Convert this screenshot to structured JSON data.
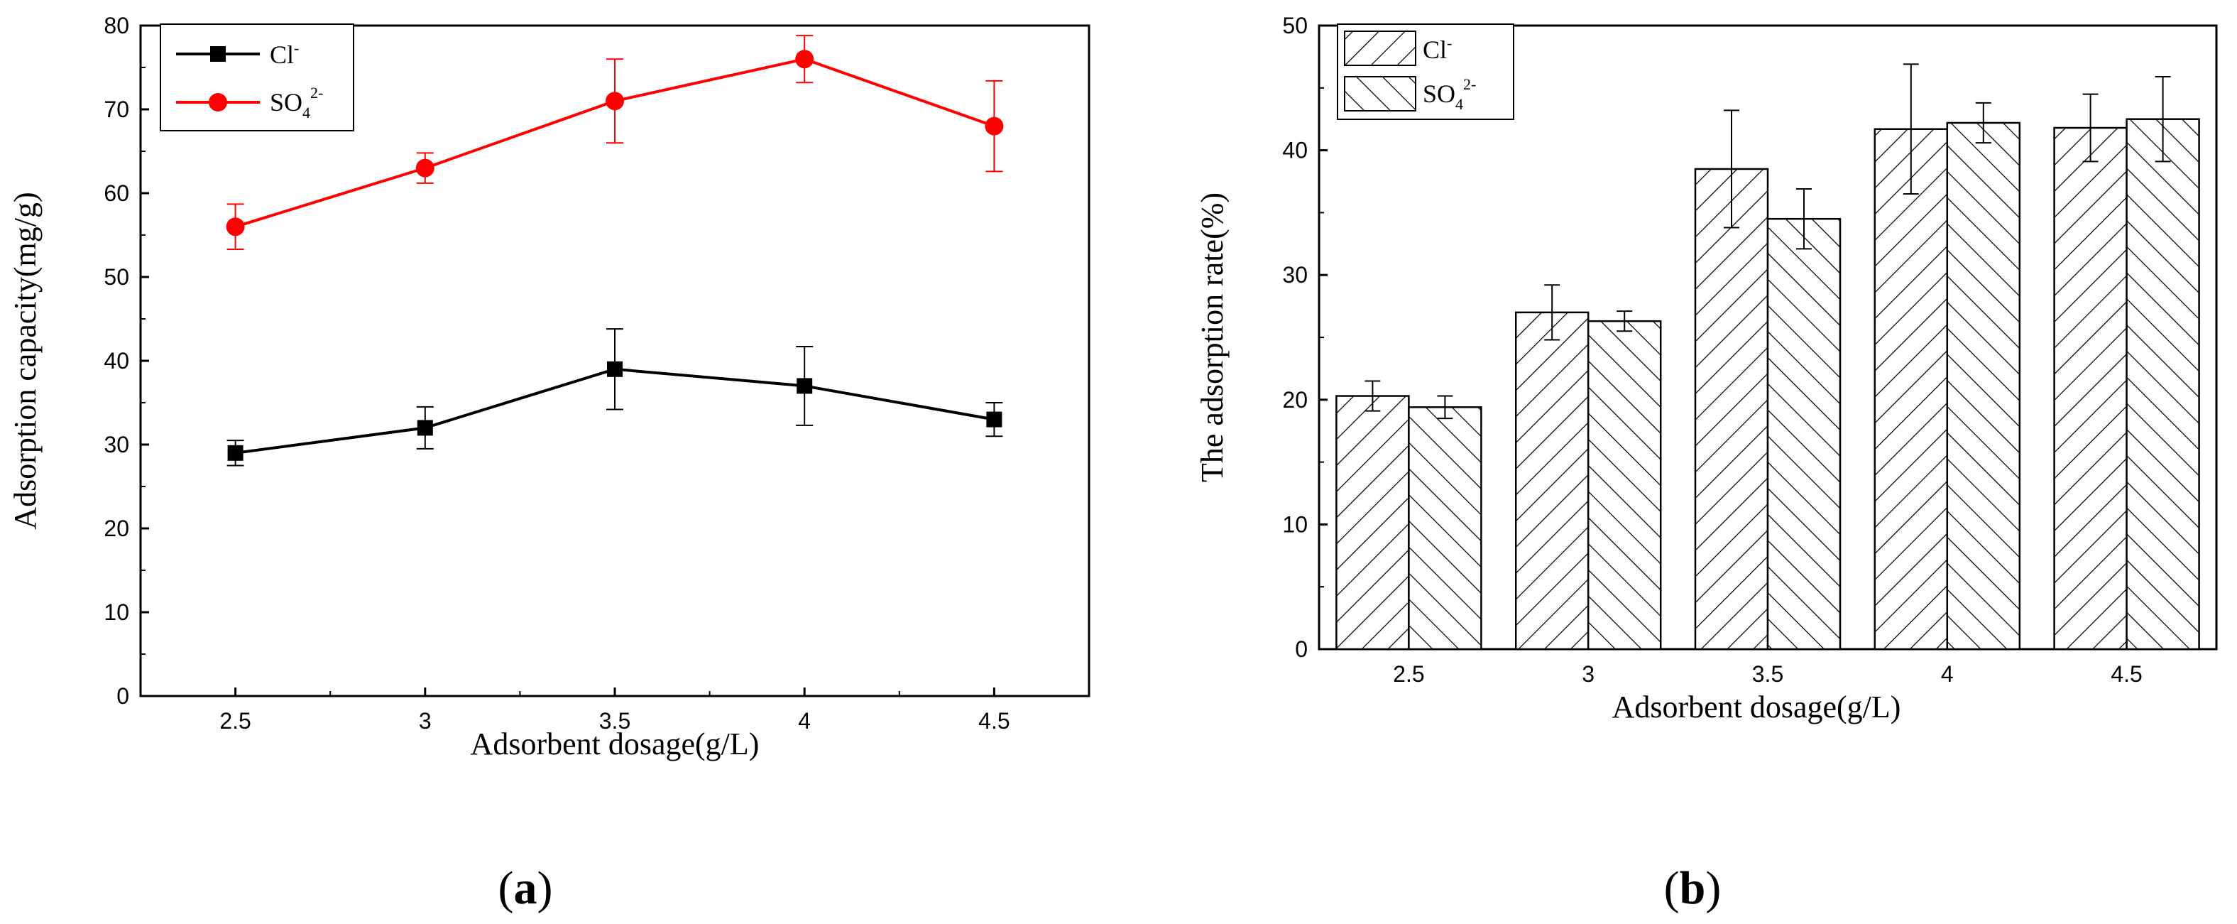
{
  "chart_data": [
    {
      "panel": "a",
      "type": "line",
      "panel_label_open": "(",
      "panel_label_letter": "a",
      "panel_label_close": ")",
      "xlabel": "Adsorbent dosage(g/L)",
      "ylabel": "Adsorption capacity(mg/g)",
      "x": [
        2.5,
        3,
        3.5,
        4,
        4.5
      ],
      "x_tick_labels": [
        "2.5",
        "3",
        "3.5",
        "4",
        "4.5"
      ],
      "xlim": [
        2.25,
        4.75
      ],
      "ylim": [
        0,
        80
      ],
      "y_ticks": [
        0,
        10,
        20,
        30,
        40,
        50,
        60,
        70,
        80
      ],
      "legend_position": "top-left",
      "series": [
        {
          "name": "Cl",
          "charge": "-",
          "values": [
            29,
            32,
            39,
            37,
            33
          ],
          "errors": [
            1.5,
            2.5,
            4.8,
            4.7,
            2.0
          ],
          "color": "#000000",
          "marker": "square"
        },
        {
          "name": "SO",
          "subscript": "4",
          "charge": "2-",
          "values": [
            56,
            63,
            71,
            76,
            68
          ],
          "errors": [
            2.7,
            1.8,
            5.0,
            2.8,
            5.4
          ],
          "color": "#ff0000",
          "marker": "circle"
        }
      ]
    },
    {
      "panel": "b",
      "type": "bar",
      "panel_label_open": "(",
      "panel_label_letter": "b",
      "panel_label_close": ")",
      "xlabel": "Adsorbent dosage(g/L)",
      "ylabel": "The adsorption rate(%)",
      "categories": [
        "2.5",
        "3",
        "3.5",
        "4",
        "4.5"
      ],
      "ylim": [
        0,
        50
      ],
      "y_ticks": [
        0,
        10,
        20,
        30,
        40,
        50
      ],
      "legend_position": "top-left",
      "series": [
        {
          "name": "Cl",
          "charge": "-",
          "values": [
            20.3,
            27.0,
            38.5,
            41.7,
            41.8
          ],
          "errors": [
            1.2,
            2.2,
            4.7,
            5.2,
            2.7
          ],
          "pattern": "forward-hatch"
        },
        {
          "name": "SO",
          "subscript": "4",
          "charge": "2-",
          "values": [
            19.4,
            26.3,
            34.5,
            42.2,
            42.5
          ],
          "errors": [
            0.9,
            0.8,
            2.4,
            1.6,
            3.4
          ],
          "pattern": "back-hatch"
        }
      ]
    }
  ]
}
